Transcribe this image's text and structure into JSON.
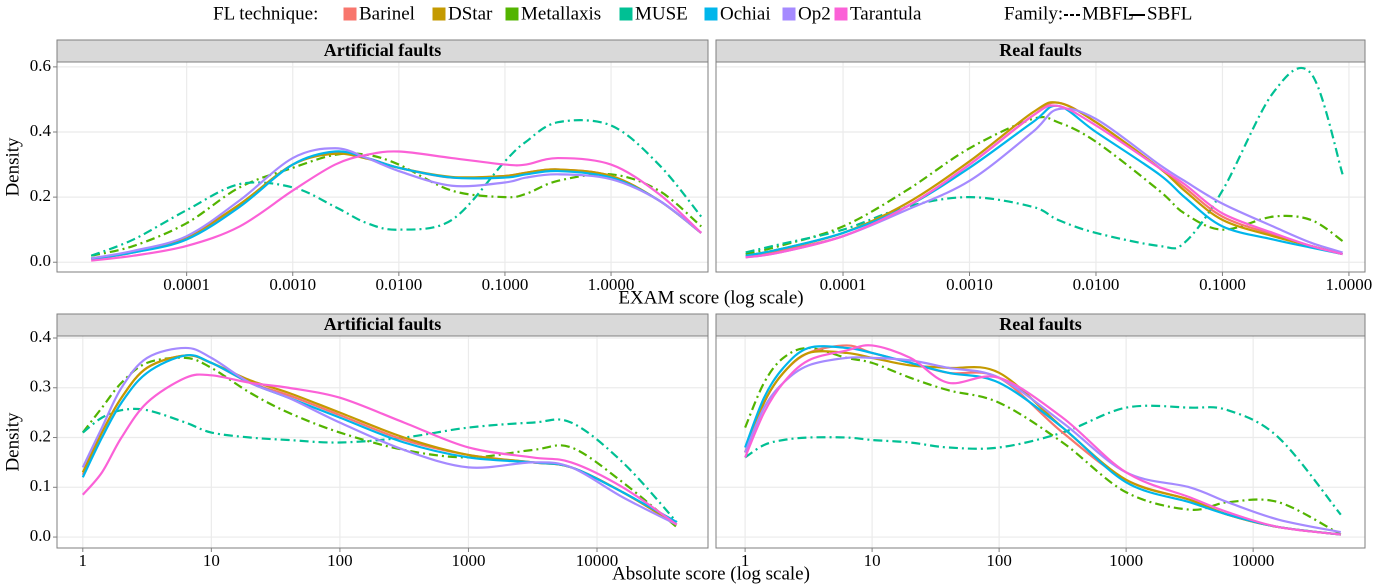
{
  "legend": {
    "technique_title": "FL technique:",
    "family_title": "Family:",
    "techniques": [
      {
        "name": "Barinel",
        "color": "#F8766D"
      },
      {
        "name": "DStar",
        "color": "#C49A00"
      },
      {
        "name": "Metallaxis",
        "color": "#53B400"
      },
      {
        "name": "MUSE",
        "color": "#00C094"
      },
      {
        "name": "Ochiai",
        "color": "#00B6EB"
      },
      {
        "name": "Op2",
        "color": "#A58AFF"
      },
      {
        "name": "Tarantula",
        "color": "#FB61D7"
      }
    ],
    "families": [
      {
        "name": "MBFL",
        "dash": "9 4 2 4"
      },
      {
        "name": "SBFL",
        "dash": null
      }
    ]
  },
  "chart_data": [
    {
      "type": "line",
      "title": "Artificial faults",
      "x_label": "EXAM score (log scale)",
      "y_label": "Density",
      "log_x": true,
      "grid": true,
      "x": [
        1.26e-05,
        3.16e-05,
        0.0001,
        0.000316,
        0.001,
        0.00251,
        0.00501,
        0.01,
        0.0316,
        0.1,
        0.158,
        0.316,
        1,
        2.82,
        7.08
      ],
      "xlim": [
        6e-06,
        8.2
      ],
      "ylim": [
        -0.03,
        0.615
      ],
      "xticks": [
        {
          "value": 0.0001,
          "label": "0.0001"
        },
        {
          "value": 0.001,
          "label": "0.0010"
        },
        {
          "value": 0.01,
          "label": "0.0100"
        },
        {
          "value": 0.1,
          "label": "0.1000"
        },
        {
          "value": 1,
          "label": "1.0000"
        }
      ],
      "yticks": [
        {
          "value": 0,
          "label": "0.0"
        },
        {
          "value": 0.2,
          "label": "0.2"
        },
        {
          "value": 0.4,
          "label": "0.4"
        },
        {
          "value": 0.6,
          "label": "0.6"
        }
      ],
      "series": [
        {
          "name": "Metallaxis",
          "family": "MBFL",
          "color": "#53B400",
          "values": [
            0.02,
            0.05,
            0.12,
            0.23,
            0.29,
            0.33,
            0.33,
            0.3,
            0.22,
            0.2,
            0.21,
            0.25,
            0.27,
            0.22,
            0.11
          ]
        },
        {
          "name": "MUSE",
          "family": "MBFL",
          "color": "#00C094",
          "values": [
            0.02,
            0.07,
            0.16,
            0.24,
            0.23,
            0.17,
            0.12,
            0.1,
            0.13,
            0.31,
            0.37,
            0.43,
            0.42,
            0.3,
            0.14
          ]
        },
        {
          "name": "Barinel",
          "family": "SBFL",
          "color": "#F8766D",
          "values": [
            0.01,
            0.03,
            0.075,
            0.175,
            0.3,
            0.335,
            0.32,
            0.29,
            0.26,
            0.265,
            0.275,
            0.285,
            0.265,
            0.19,
            0.09
          ]
        },
        {
          "name": "DStar",
          "family": "SBFL",
          "color": "#C49A00",
          "values": [
            0.012,
            0.032,
            0.078,
            0.178,
            0.3,
            0.333,
            0.318,
            0.29,
            0.262,
            0.265,
            0.275,
            0.285,
            0.265,
            0.19,
            0.09
          ]
        },
        {
          "name": "Ochiai",
          "family": "SBFL",
          "color": "#00B6EB",
          "values": [
            0.01,
            0.03,
            0.07,
            0.17,
            0.3,
            0.34,
            0.32,
            0.29,
            0.26,
            0.26,
            0.27,
            0.28,
            0.26,
            0.19,
            0.09
          ]
        },
        {
          "name": "Op2",
          "family": "SBFL",
          "color": "#A58AFF",
          "values": [
            0.012,
            0.035,
            0.08,
            0.19,
            0.32,
            0.35,
            0.32,
            0.28,
            0.235,
            0.245,
            0.26,
            0.27,
            0.255,
            0.19,
            0.09
          ]
        },
        {
          "name": "Tarantula",
          "family": "SBFL",
          "color": "#FB61D7",
          "values": [
            0.005,
            0.02,
            0.05,
            0.11,
            0.22,
            0.3,
            0.33,
            0.34,
            0.32,
            0.3,
            0.3,
            0.32,
            0.3,
            0.21,
            0.09
          ]
        }
      ]
    },
    {
      "type": "line",
      "title": "Real faults",
      "log_x": true,
      "grid": true,
      "x": [
        1.7e-05,
        3.16e-05,
        0.0001,
        0.000316,
        0.001,
        0.00316,
        0.00501,
        0.01,
        0.0316,
        0.0501,
        0.1,
        0.251,
        0.501,
        0.891
      ],
      "xlim": [
        9.9e-06,
        1.34
      ],
      "ylim": [
        -0.03,
        0.615
      ],
      "xticks": [
        {
          "value": 0.0001,
          "label": "0.0001"
        },
        {
          "value": 0.001,
          "label": "0.0010"
        },
        {
          "value": 0.01,
          "label": "0.0100"
        },
        {
          "value": 0.1,
          "label": "0.1000"
        },
        {
          "value": 1,
          "label": "1.0000"
        }
      ],
      "yticks": [
        0,
        0.2,
        0.4,
        0.6
      ],
      "series": [
        {
          "name": "Metallaxis",
          "family": "MBFL",
          "color": "#53B400",
          "values": [
            0.025,
            0.05,
            0.11,
            0.22,
            0.35,
            0.44,
            0.43,
            0.37,
            0.22,
            0.15,
            0.1,
            0.14,
            0.13,
            0.065
          ]
        },
        {
          "name": "MUSE",
          "family": "MBFL",
          "color": "#00C094",
          "values": [
            0.03,
            0.055,
            0.1,
            0.17,
            0.2,
            0.17,
            0.13,
            0.09,
            0.05,
            0.06,
            0.22,
            0.52,
            0.58,
            0.27
          ]
        },
        {
          "name": "Barinel",
          "family": "SBFL",
          "color": "#F8766D",
          "values": [
            0.015,
            0.035,
            0.08,
            0.17,
            0.3,
            0.45,
            0.49,
            0.43,
            0.29,
            0.23,
            0.14,
            0.085,
            0.05,
            0.025
          ]
        },
        {
          "name": "DStar",
          "family": "SBFL",
          "color": "#C49A00",
          "values": [
            0.02,
            0.04,
            0.09,
            0.18,
            0.31,
            0.46,
            0.49,
            0.43,
            0.29,
            0.22,
            0.13,
            0.08,
            0.05,
            0.025
          ]
        },
        {
          "name": "Ochiai",
          "family": "SBFL",
          "color": "#00B6EB",
          "values": [
            0.02,
            0.04,
            0.09,
            0.17,
            0.29,
            0.43,
            0.48,
            0.4,
            0.27,
            0.2,
            0.11,
            0.07,
            0.045,
            0.025
          ]
        },
        {
          "name": "Op2",
          "family": "SBFL",
          "color": "#A58AFF",
          "values": [
            0.015,
            0.03,
            0.08,
            0.16,
            0.25,
            0.4,
            0.47,
            0.44,
            0.3,
            0.25,
            0.18,
            0.11,
            0.06,
            0.03
          ]
        },
        {
          "name": "Tarantula",
          "family": "SBFL",
          "color": "#FB61D7",
          "values": [
            0.015,
            0.03,
            0.08,
            0.17,
            0.3,
            0.45,
            0.48,
            0.42,
            0.29,
            0.24,
            0.15,
            0.09,
            0.05,
            0.025
          ]
        }
      ]
    },
    {
      "type": "line",
      "title": "Artificial faults",
      "x_label": "Absolute score (log scale)",
      "y_label": "Density",
      "log_x": true,
      "grid": true,
      "x": [
        1,
        1.41,
        2,
        3.16,
        6.31,
        10,
        20,
        39.8,
        100,
        316,
        1000,
        3162,
        6310,
        15850,
        41700
      ],
      "xlim": [
        0.63,
        73000
      ],
      "ylim": [
        -0.022,
        0.404
      ],
      "xticks": [
        1,
        10,
        100,
        1000,
        10000
      ],
      "yticks": [
        {
          "value": 0,
          "label": "0.0"
        },
        0.1,
        0.2,
        0.3,
        0.4
      ],
      "series": [
        {
          "name": "Metallaxis",
          "family": "MBFL",
          "color": "#53B400",
          "values": [
            0.21,
            0.26,
            0.31,
            0.35,
            0.36,
            0.34,
            0.29,
            0.25,
            0.21,
            0.175,
            0.16,
            0.175,
            0.18,
            0.11,
            0.02
          ]
        },
        {
          "name": "MUSE",
          "family": "MBFL",
          "color": "#00C094",
          "values": [
            0.21,
            0.24,
            0.255,
            0.255,
            0.23,
            0.21,
            0.2,
            0.195,
            0.19,
            0.2,
            0.22,
            0.23,
            0.23,
            0.15,
            0.03
          ]
        },
        {
          "name": "Barinel",
          "family": "SBFL",
          "color": "#F8766D",
          "values": [
            0.125,
            0.21,
            0.28,
            0.34,
            0.365,
            0.35,
            0.31,
            0.285,
            0.245,
            0.195,
            0.165,
            0.15,
            0.14,
            0.09,
            0.025
          ]
        },
        {
          "name": "DStar",
          "family": "SBFL",
          "color": "#C49A00",
          "values": [
            0.13,
            0.21,
            0.28,
            0.34,
            0.365,
            0.35,
            0.315,
            0.29,
            0.25,
            0.2,
            0.165,
            0.15,
            0.14,
            0.09,
            0.025
          ]
        },
        {
          "name": "Ochiai",
          "family": "SBFL",
          "color": "#00B6EB",
          "values": [
            0.12,
            0.2,
            0.27,
            0.33,
            0.365,
            0.35,
            0.31,
            0.28,
            0.24,
            0.19,
            0.16,
            0.15,
            0.14,
            0.09,
            0.03
          ]
        },
        {
          "name": "Op2",
          "family": "SBFL",
          "color": "#A58AFF",
          "values": [
            0.14,
            0.22,
            0.3,
            0.36,
            0.38,
            0.36,
            0.31,
            0.28,
            0.23,
            0.175,
            0.14,
            0.15,
            0.14,
            0.08,
            0.025
          ]
        },
        {
          "name": "Tarantula",
          "family": "SBFL",
          "color": "#FB61D7",
          "values": [
            0.085,
            0.13,
            0.2,
            0.27,
            0.32,
            0.325,
            0.31,
            0.3,
            0.28,
            0.23,
            0.18,
            0.16,
            0.15,
            0.1,
            0.025
          ]
        }
      ]
    },
    {
      "type": "line",
      "title": "Real faults",
      "log_x": true,
      "grid": true,
      "x": [
        1,
        1.41,
        2,
        3.16,
        6.31,
        10,
        20,
        39.8,
        100,
        316,
        1000,
        3162,
        6310,
        15850,
        49000
      ],
      "xlim": [
        0.59,
        76000
      ],
      "ylim": [
        -0.022,
        0.404
      ],
      "xticks": [
        1,
        10,
        100,
        1000,
        10000
      ],
      "yticks": [
        0,
        0.1,
        0.2,
        0.3,
        0.4
      ],
      "series": [
        {
          "name": "Metallaxis",
          "family": "MBFL",
          "color": "#53B400",
          "values": [
            0.22,
            0.31,
            0.36,
            0.38,
            0.36,
            0.35,
            0.32,
            0.295,
            0.27,
            0.19,
            0.09,
            0.055,
            0.07,
            0.07,
            0.005
          ]
        },
        {
          "name": "MUSE",
          "family": "MBFL",
          "color": "#00C094",
          "values": [
            0.16,
            0.185,
            0.195,
            0.2,
            0.2,
            0.195,
            0.19,
            0.18,
            0.18,
            0.21,
            0.26,
            0.26,
            0.255,
            0.2,
            0.045
          ]
        },
        {
          "name": "Barinel",
          "family": "SBFL",
          "color": "#F8766D",
          "values": [
            0.17,
            0.27,
            0.33,
            0.37,
            0.385,
            0.37,
            0.35,
            0.33,
            0.32,
            0.21,
            0.115,
            0.075,
            0.045,
            0.02,
            0.005
          ]
        },
        {
          "name": "DStar",
          "family": "SBFL",
          "color": "#C49A00",
          "values": [
            0.17,
            0.27,
            0.33,
            0.37,
            0.37,
            0.36,
            0.345,
            0.34,
            0.33,
            0.22,
            0.115,
            0.075,
            0.045,
            0.02,
            0.005
          ]
        },
        {
          "name": "Ochiai",
          "family": "SBFL",
          "color": "#00B6EB",
          "values": [
            0.18,
            0.28,
            0.34,
            0.38,
            0.38,
            0.37,
            0.35,
            0.33,
            0.31,
            0.22,
            0.11,
            0.07,
            0.045,
            0.02,
            0.005
          ]
        },
        {
          "name": "Op2",
          "family": "SBFL",
          "color": "#A58AFF",
          "values": [
            0.17,
            0.26,
            0.31,
            0.345,
            0.36,
            0.36,
            0.355,
            0.34,
            0.32,
            0.23,
            0.13,
            0.1,
            0.07,
            0.035,
            0.01
          ]
        },
        {
          "name": "Tarantula",
          "family": "SBFL",
          "color": "#FB61D7",
          "values": [
            0.16,
            0.25,
            0.31,
            0.355,
            0.375,
            0.385,
            0.36,
            0.31,
            0.32,
            0.24,
            0.13,
            0.08,
            0.05,
            0.02,
            0.005
          ]
        }
      ]
    }
  ]
}
